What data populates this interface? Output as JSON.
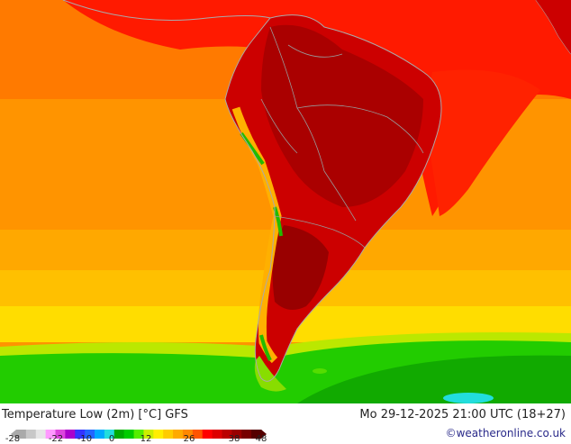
{
  "map": {
    "title": "Temperature Low (2m) [°C] GFS",
    "datetime": "Mo 29-12-2025 21:00 UTC (18+27)",
    "credit": "©weatheronline.co.uk"
  },
  "legend": {
    "ticks": [
      "-28",
      "-22",
      "-10",
      "0",
      "12",
      "26",
      "38",
      "48"
    ],
    "colors": [
      "#aaaaaa",
      "#c8c8c8",
      "#e6e6e6",
      "#ff99ff",
      "#dd44dd",
      "#aa00cc",
      "#3333ff",
      "#2266ff",
      "#00aaff",
      "#22dddd",
      "#00aa00",
      "#00cc00",
      "#55ee00",
      "#ccee00",
      "#ffee00",
      "#ffcc00",
      "#ffaa00",
      "#ff8800",
      "#ff5500",
      "#ff0000",
      "#dd0000",
      "#bb0000",
      "#990000",
      "#770000",
      "#550000"
    ]
  },
  "colors": {
    "ocean_warm": "#ff8c00",
    "ocean_mid": "#ffb000",
    "ocean_cool": "#ffd000",
    "cold_band": "#22cc00",
    "land_hot": "#dd0000",
    "land_hottest": "#990000",
    "north_red": "#ff1a00"
  }
}
